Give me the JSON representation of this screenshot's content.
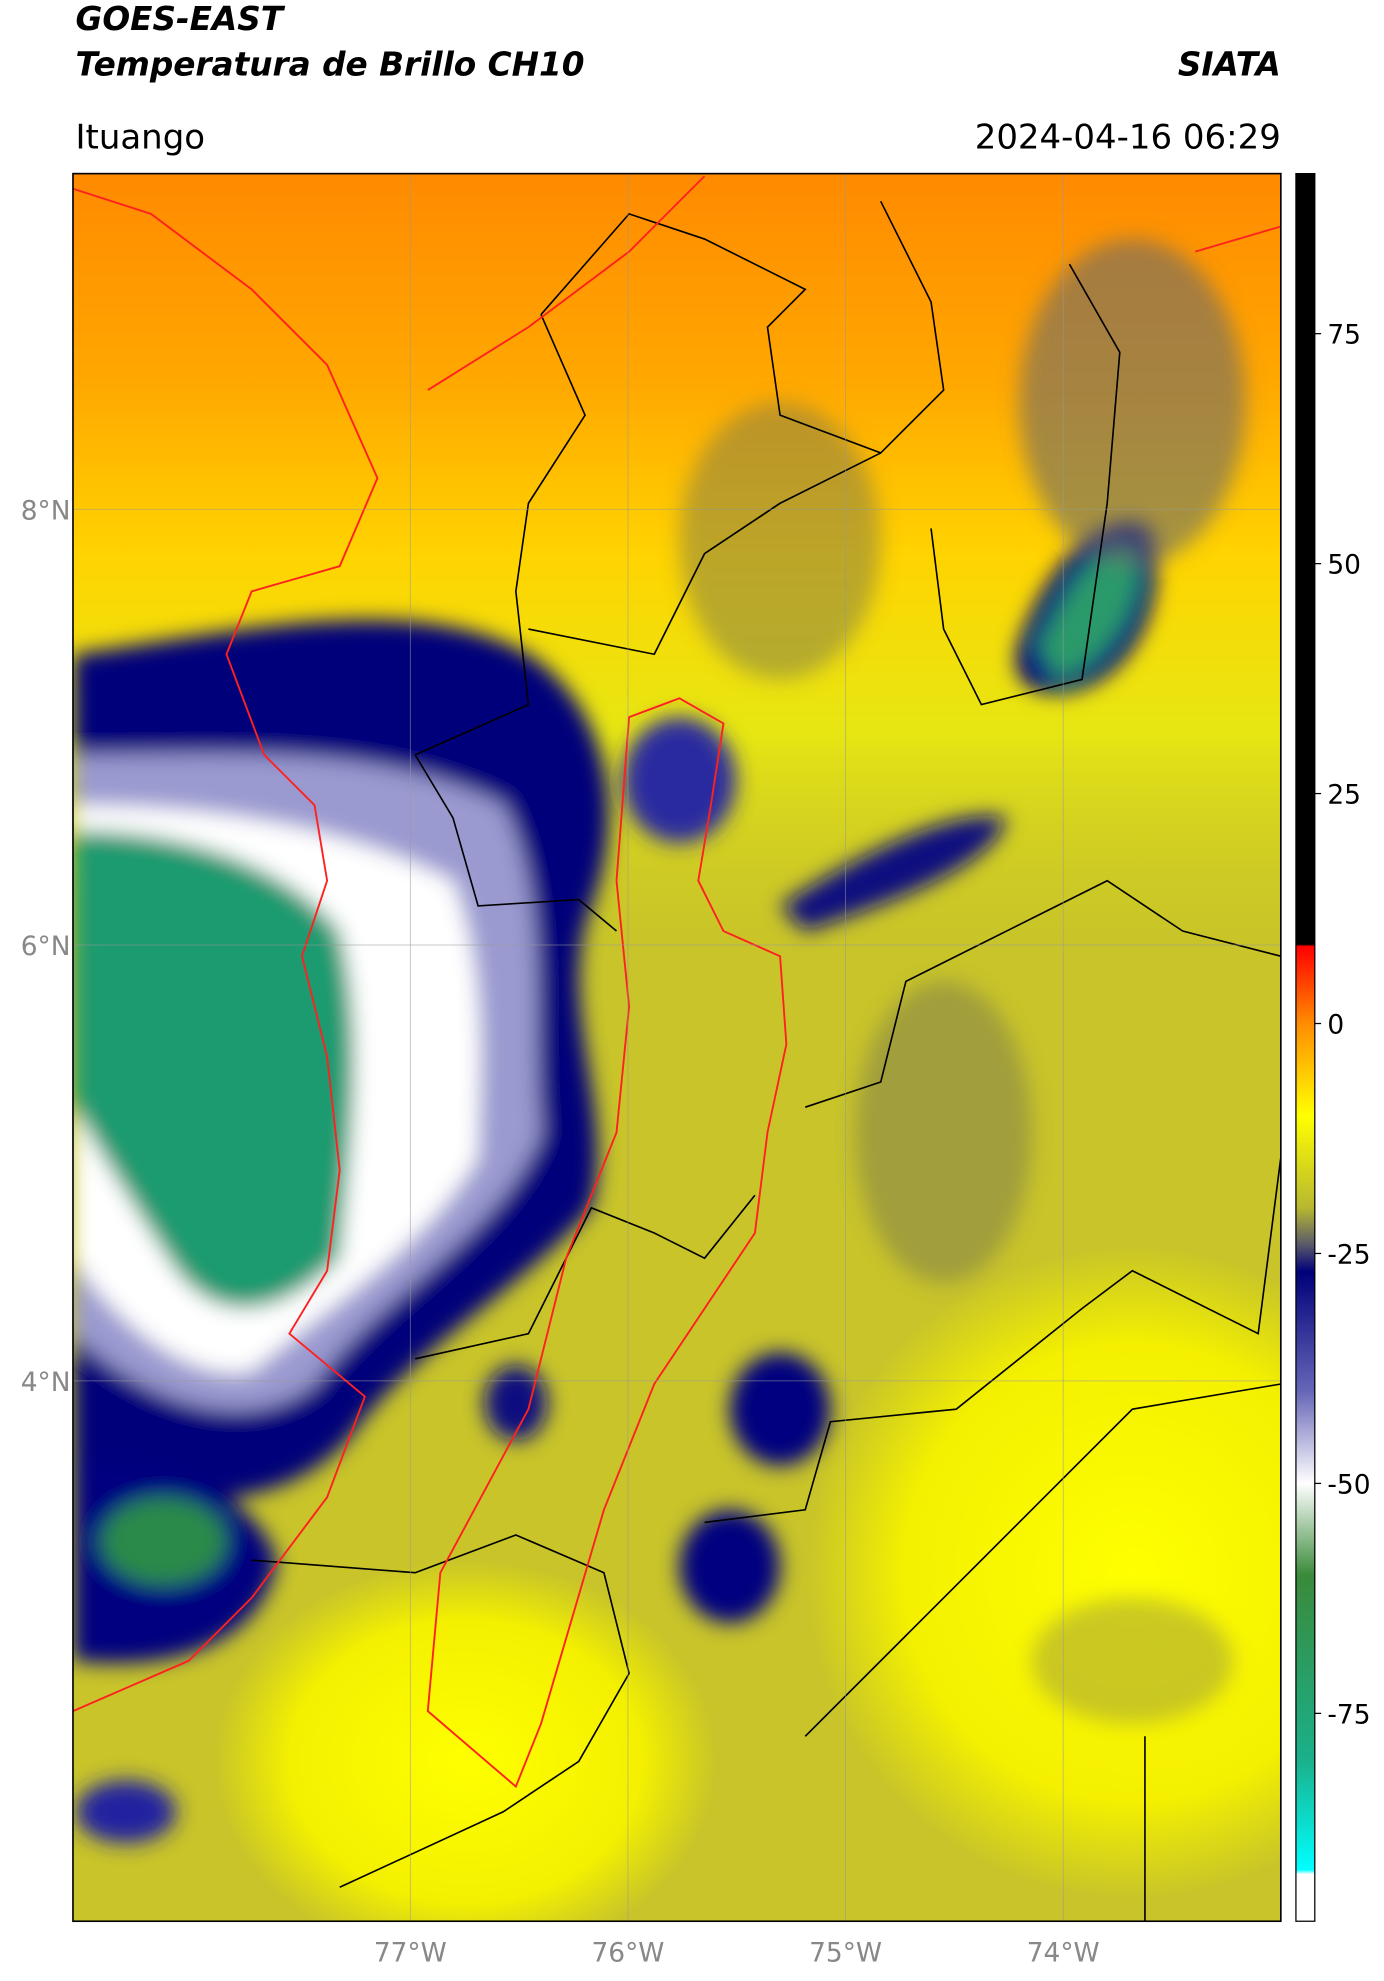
{
  "header": {
    "title_line1": "GOES-EAST",
    "title_line2": "Temperatura de Brillo CH10",
    "source": "SIATA",
    "region": "Ituango",
    "datetime": "2024-04-16 06:29"
  },
  "map": {
    "lonlim": [
      -78.55,
      -73.0
    ],
    "latlim": [
      1.52,
      9.54
    ],
    "lat_ticks": [
      {
        "value": 8,
        "label": "8°N"
      },
      {
        "value": 6,
        "label": "6°N"
      },
      {
        "value": 4,
        "label": "4°N"
      }
    ],
    "lon_ticks": [
      {
        "value": -77,
        "label": "77°W"
      },
      {
        "value": -76,
        "label": "76°W"
      },
      {
        "value": -75,
        "label": "75°W"
      },
      {
        "value": -74,
        "label": "74°W"
      }
    ],
    "grid": true
  },
  "colorbar": {
    "lim": [
      -97.6,
      92.4
    ],
    "ticks": [
      75,
      50,
      25,
      0,
      -25,
      -50,
      -75
    ],
    "colormap": [
      {
        "value": 92.4,
        "color": "#000000"
      },
      {
        "value": 8.6,
        "color": "#000000"
      },
      {
        "value": 8.4,
        "color": "#ff0000"
      },
      {
        "value": 0,
        "color": "#ff8c00"
      },
      {
        "value": -10,
        "color": "#ffff00"
      },
      {
        "value": -20,
        "color": "#b8b830"
      },
      {
        "value": -24,
        "color": "#5a5a6a"
      },
      {
        "value": -27,
        "color": "#00007a"
      },
      {
        "value": -40,
        "color": "#6666b8"
      },
      {
        "value": -50,
        "color": "#ffffff"
      },
      {
        "value": -60,
        "color": "#3a8a3a"
      },
      {
        "value": -80,
        "color": "#1ab08a"
      },
      {
        "value": -92,
        "color": "#00ffff"
      },
      {
        "value": -92.5,
        "color": "#ffffff"
      },
      {
        "value": -97.6,
        "color": "#ffffff"
      }
    ]
  }
}
